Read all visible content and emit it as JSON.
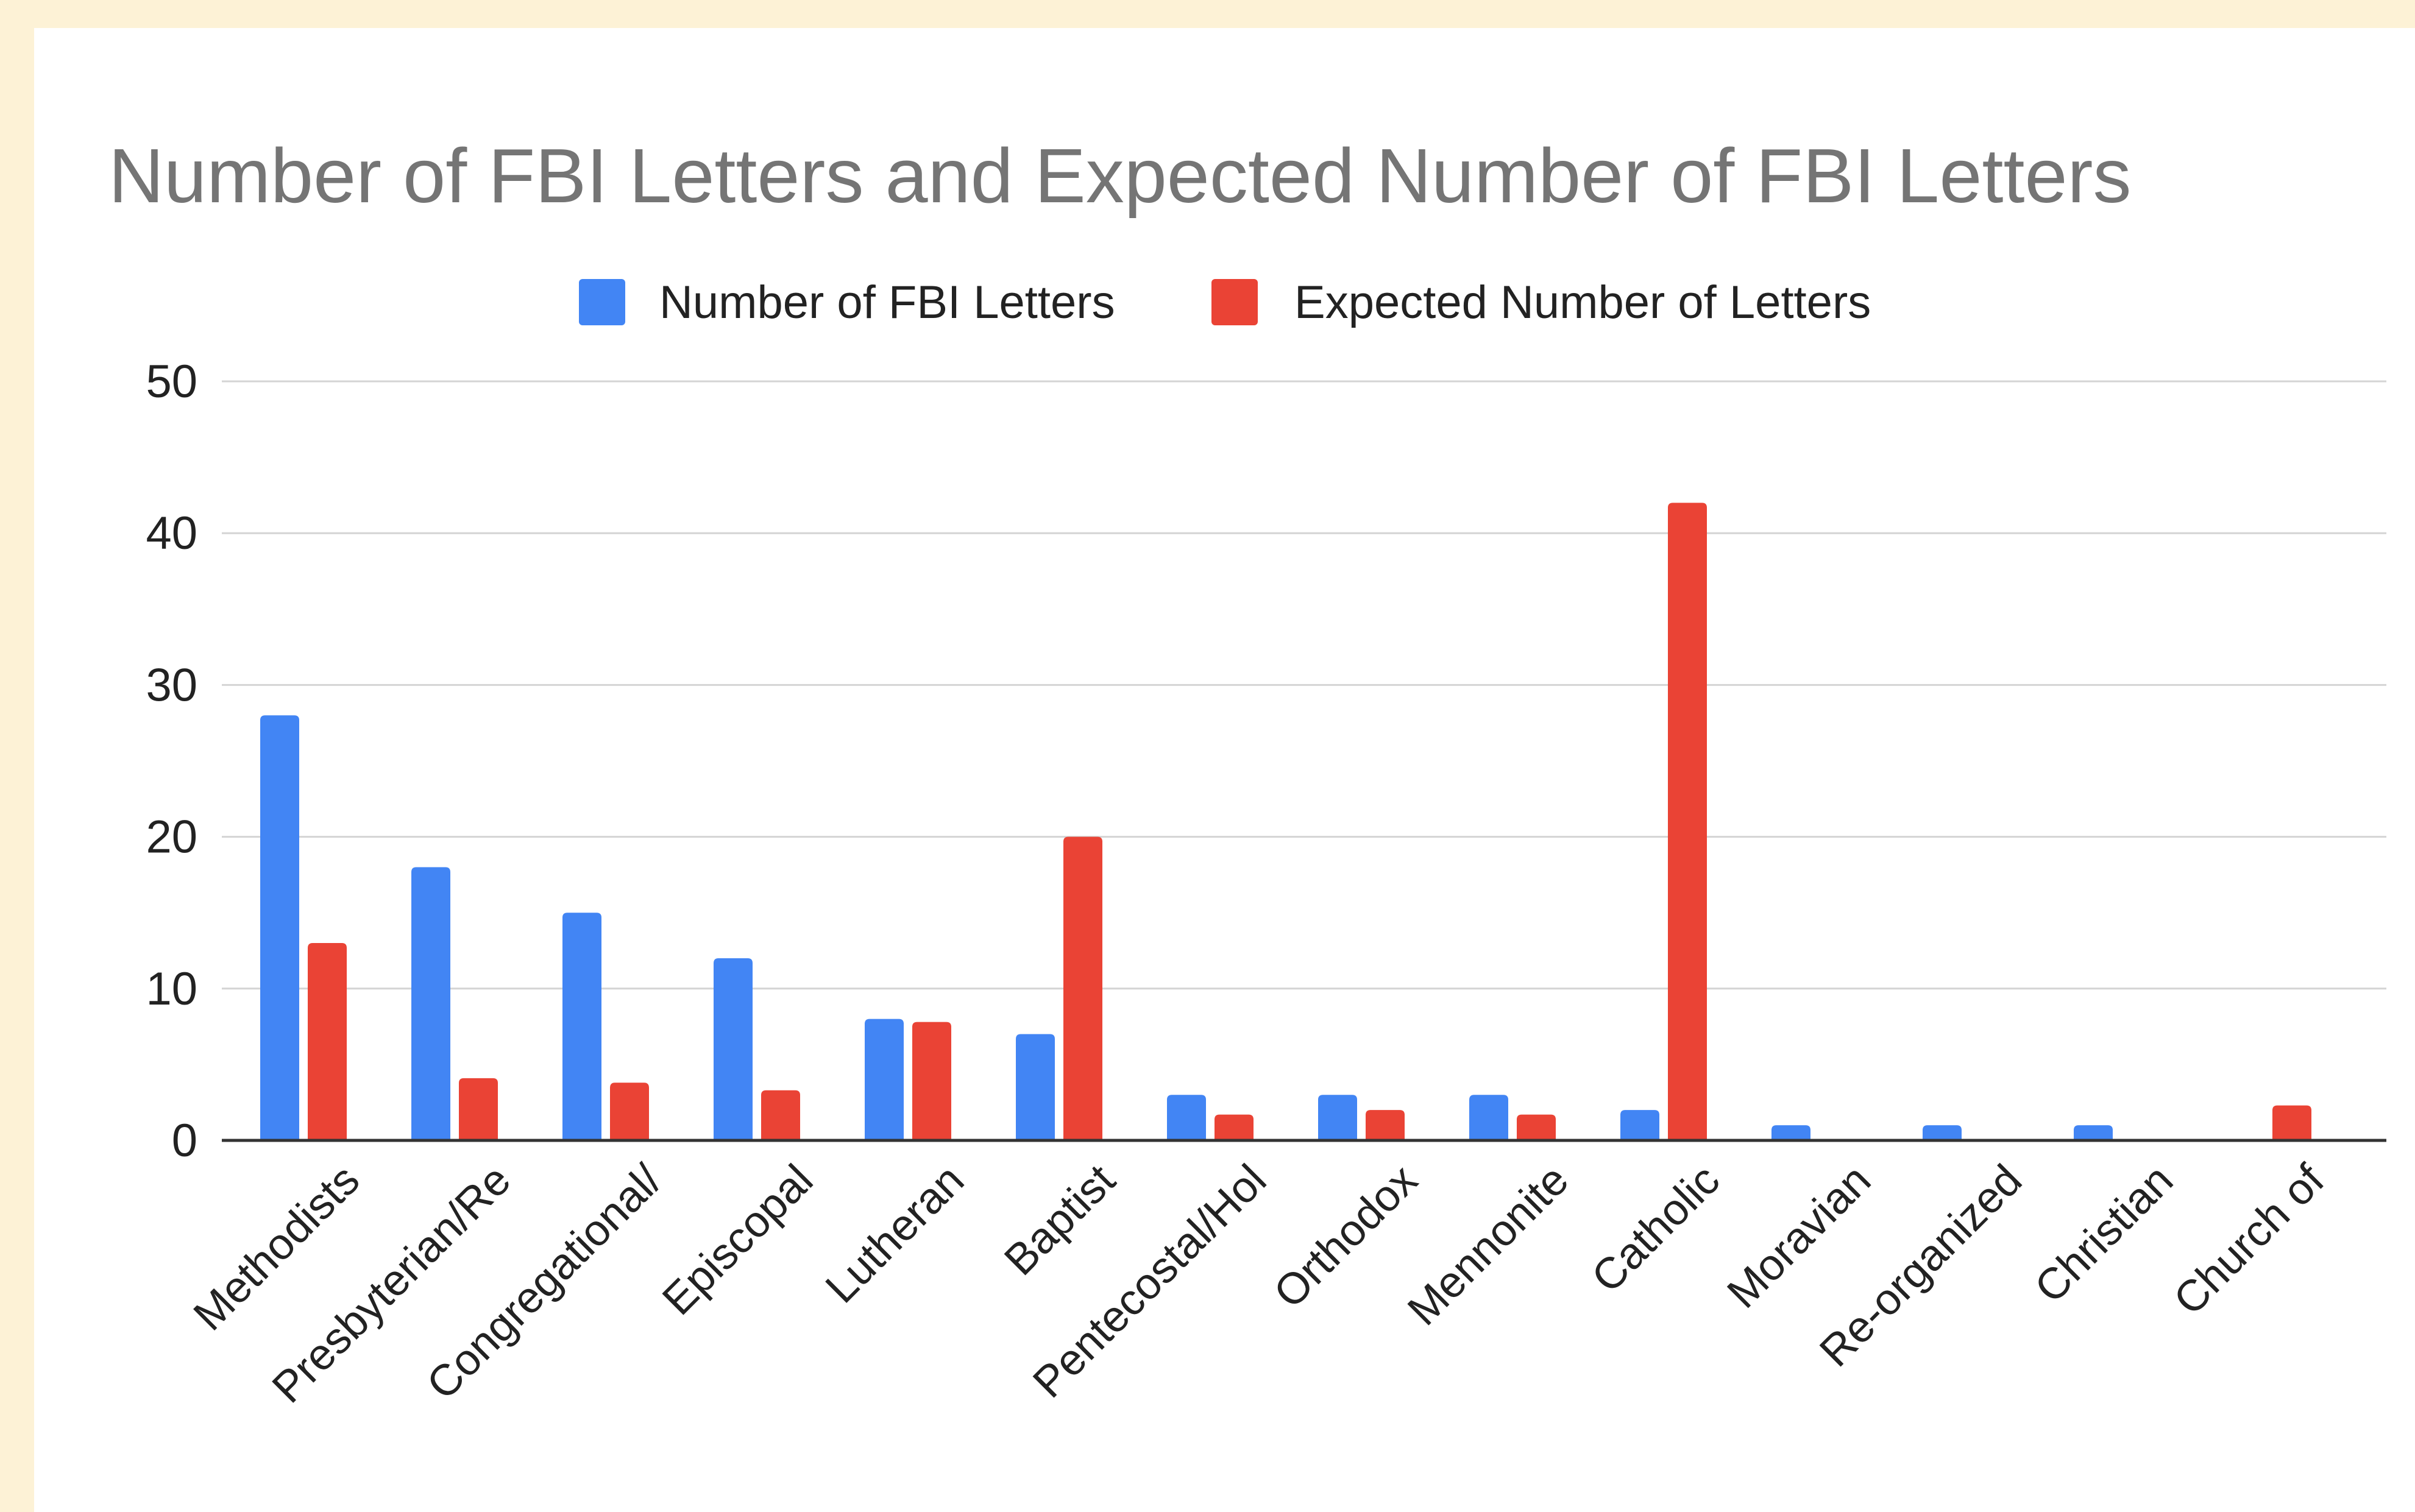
{
  "colors": {
    "background": "#fdf2d6",
    "card": "#ffffff",
    "gridline": "#d4d4d4",
    "baseline": "#333333",
    "title": "#757575",
    "text": "#222222"
  },
  "chart_data": {
    "type": "bar",
    "title": "Number of FBI Letters and Expected Number of FBI Letters",
    "xlabel": "",
    "ylabel": "",
    "ylim": [
      0,
      50
    ],
    "yticks": [
      0,
      10,
      20,
      30,
      40,
      50
    ],
    "grid": true,
    "legend_position": "top-center",
    "categories": [
      "Methodists",
      "Presbyterian/Re",
      "Congregational/",
      "Episcopal",
      "Lutheran",
      "Baptist",
      "Pentecostal/Hol",
      "Orthodox",
      "Mennonite",
      "Catholic",
      "Moravian",
      "Re-organized",
      "Christian",
      "Church of"
    ],
    "series": [
      {
        "name": "Number of FBI Letters",
        "color": "#4285f4",
        "values": [
          28,
          18,
          15,
          12,
          8,
          7,
          3,
          3,
          3,
          2,
          1,
          1,
          1,
          0
        ]
      },
      {
        "name": "Expected Number of Letters",
        "color": "#ea4335",
        "values": [
          13,
          4.1,
          3.8,
          3.3,
          7.8,
          20,
          1.7,
          2,
          1.7,
          42,
          0.1,
          0.1,
          0.1,
          2.3
        ]
      }
    ]
  }
}
